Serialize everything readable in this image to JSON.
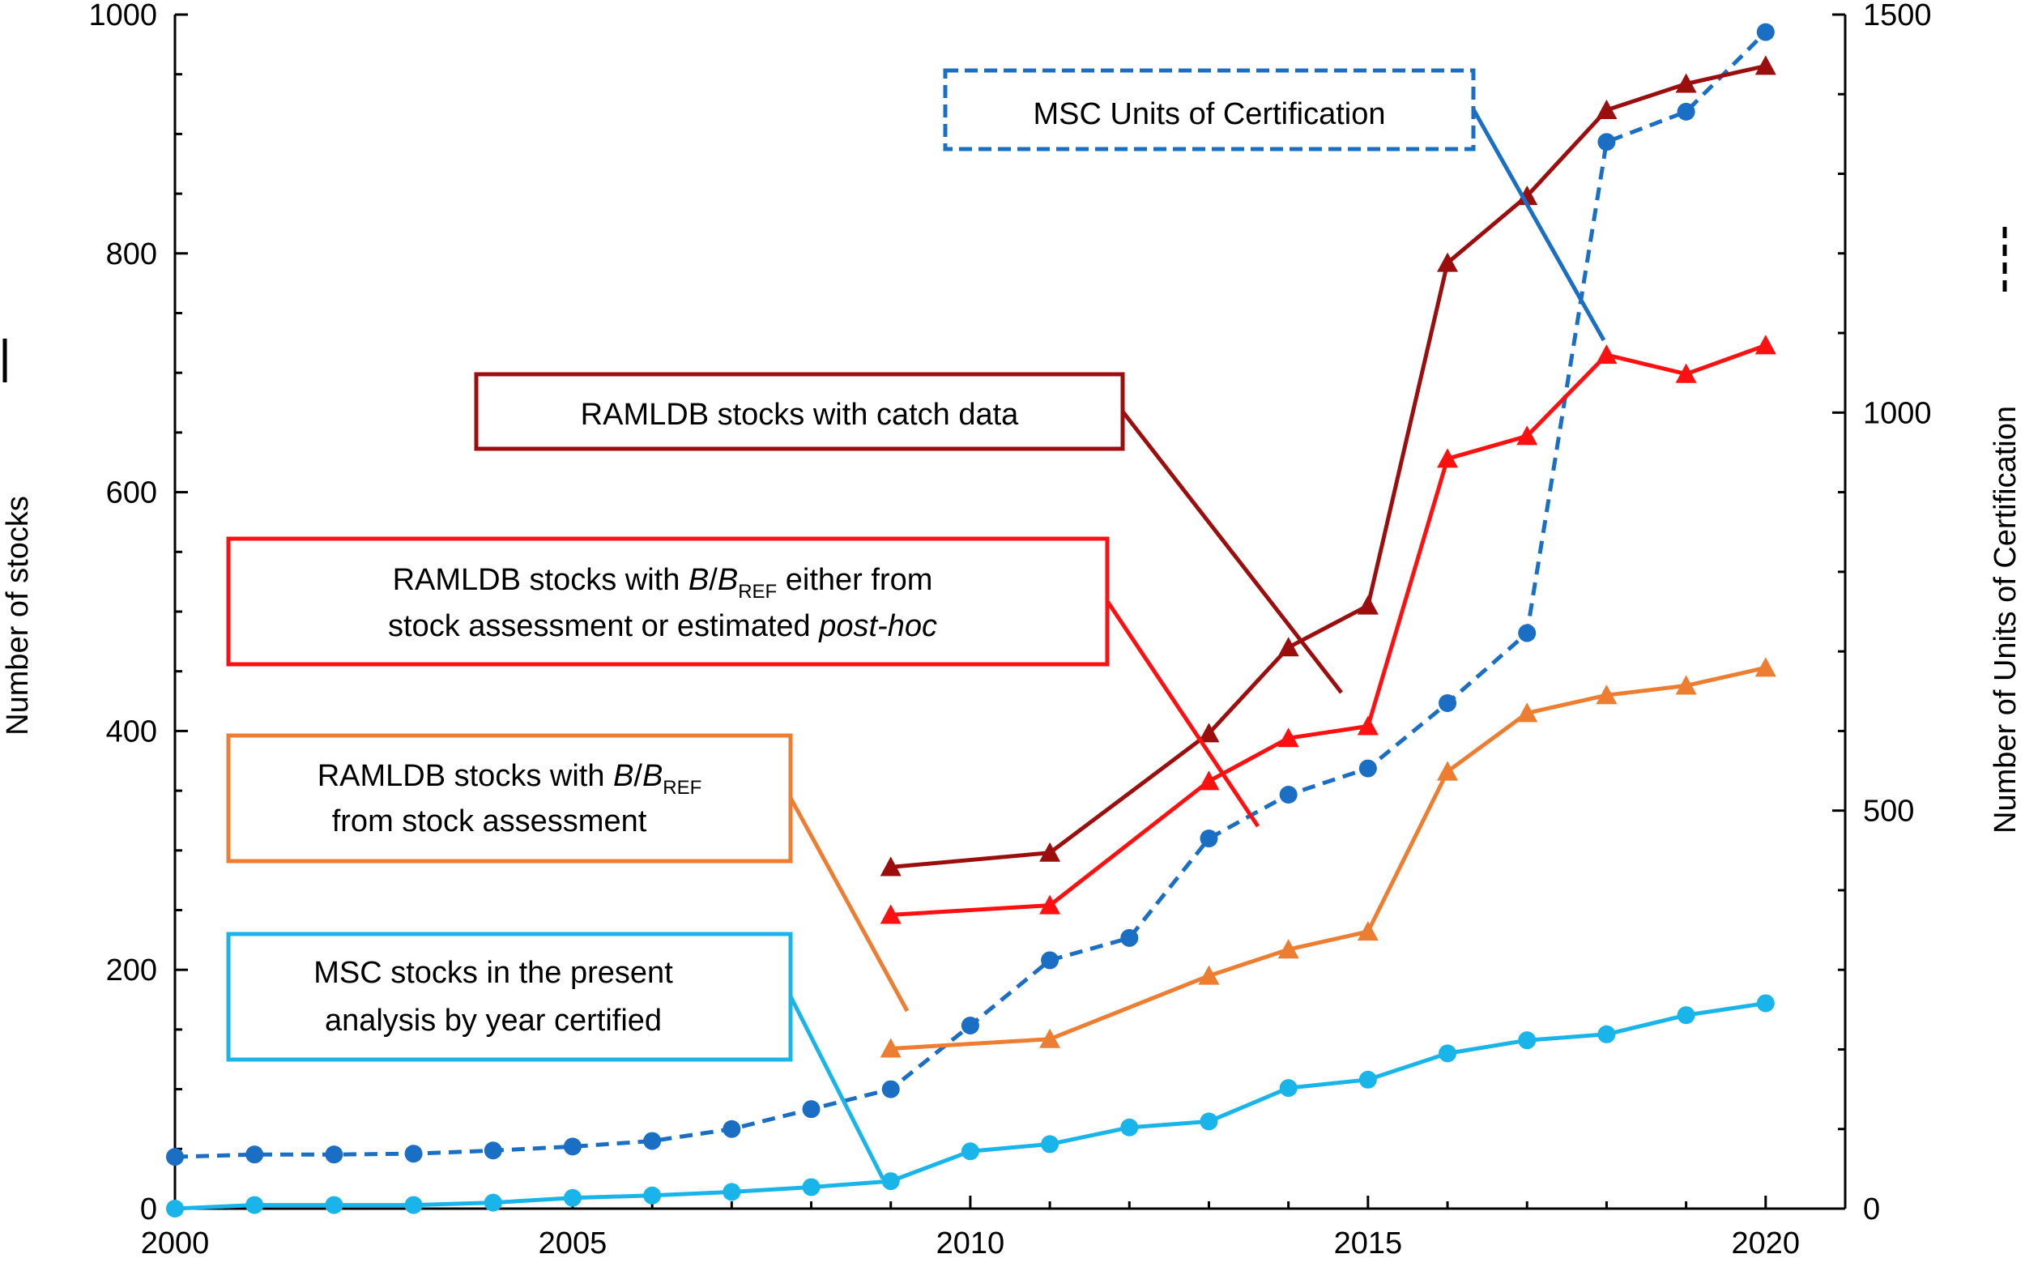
{
  "chart_data": {
    "type": "line",
    "x_ticks": [
      2000,
      2005,
      2010,
      2015,
      2020
    ],
    "x_range": [
      2000,
      2021
    ],
    "y_left": {
      "label": "Number of stocks",
      "range": [
        0,
        1000
      ],
      "ticks": [
        0,
        200,
        400,
        600,
        800,
        1000
      ]
    },
    "y_right": {
      "label": "Number of Units of Certification",
      "range": [
        0,
        1500
      ],
      "ticks": [
        0,
        500,
        1000,
        1500
      ]
    },
    "series": [
      {
        "key": "msc_units",
        "name": "MSC Units of Certification",
        "axis": "right",
        "color": "#1a6fc4",
        "style": "dashed",
        "marker": "circle",
        "points": [
          [
            2000,
            65
          ],
          [
            2001,
            68
          ],
          [
            2002,
            68
          ],
          [
            2003,
            69
          ],
          [
            2004,
            73
          ],
          [
            2005,
            78
          ],
          [
            2006,
            85
          ],
          [
            2007,
            100
          ],
          [
            2008,
            125
          ],
          [
            2009,
            150
          ],
          [
            2010,
            230
          ],
          [
            2011,
            312
          ],
          [
            2012,
            340
          ],
          [
            2013,
            465
          ],
          [
            2014,
            520
          ],
          [
            2015,
            553
          ],
          [
            2016,
            635
          ],
          [
            2017,
            723
          ],
          [
            2018,
            1340
          ],
          [
            2019,
            1378
          ],
          [
            2020,
            1478
          ]
        ]
      },
      {
        "key": "ramldb_catch",
        "name": "RAMLDB stocks with catch data",
        "axis": "left",
        "color": "#9c0e0e",
        "style": "solid",
        "marker": "triangle",
        "points": [
          [
            2009,
            286
          ],
          [
            2011,
            298
          ],
          [
            2013,
            398
          ],
          [
            2014,
            470
          ],
          [
            2015,
            505
          ],
          [
            2016,
            792
          ],
          [
            2017,
            848
          ],
          [
            2018,
            920
          ],
          [
            2019,
            942
          ],
          [
            2020,
            957
          ]
        ]
      },
      {
        "key": "ramldb_bref_all",
        "name": "RAMLDB stocks with B/BREF either from stock assessment or estimated post-hoc",
        "axis": "left",
        "color": "#ff1010",
        "style": "solid",
        "marker": "triangle",
        "points": [
          [
            2009,
            246
          ],
          [
            2011,
            254
          ],
          [
            2013,
            358
          ],
          [
            2014,
            394
          ],
          [
            2015,
            404
          ],
          [
            2016,
            628
          ],
          [
            2017,
            647
          ],
          [
            2018,
            715
          ],
          [
            2019,
            699
          ],
          [
            2020,
            723
          ]
        ]
      },
      {
        "key": "ramldb_bref_assess",
        "name": "RAMLDB stocks with B/BREF from stock assessment",
        "axis": "left",
        "color": "#ed7d31",
        "style": "solid",
        "marker": "triangle",
        "points": [
          [
            2009,
            134
          ],
          [
            2011,
            142
          ],
          [
            2013,
            195
          ],
          [
            2014,
            217
          ],
          [
            2015,
            232
          ],
          [
            2016,
            366
          ],
          [
            2017,
            415
          ],
          [
            2018,
            430
          ],
          [
            2019,
            438
          ],
          [
            2020,
            453
          ]
        ]
      },
      {
        "key": "msc_stocks",
        "name": "MSC stocks in the present analysis by year certified",
        "axis": "left",
        "color": "#19b5ea",
        "style": "solid",
        "marker": "circle",
        "points": [
          [
            2000,
            0
          ],
          [
            2001,
            3
          ],
          [
            2002,
            3
          ],
          [
            2003,
            3
          ],
          [
            2004,
            5
          ],
          [
            2005,
            9
          ],
          [
            2006,
            11
          ],
          [
            2007,
            14
          ],
          [
            2008,
            18
          ],
          [
            2009,
            23
          ],
          [
            2010,
            48
          ],
          [
            2011,
            54
          ],
          [
            2012,
            68
          ],
          [
            2013,
            73
          ],
          [
            2014,
            101
          ],
          [
            2015,
            108
          ],
          [
            2016,
            130
          ],
          [
            2017,
            141
          ],
          [
            2018,
            146
          ],
          [
            2019,
            162
          ],
          [
            2020,
            172
          ]
        ]
      }
    ],
    "annotations": [
      {
        "key": "msc_units",
        "lines": [
          "MSC Units of Certification"
        ]
      },
      {
        "key": "ramldb_catch",
        "lines": [
          "RAMLDB stocks with catch data"
        ]
      },
      {
        "key": "ramldb_bref_all",
        "line1_prefix": "RAMLDB stocks with ",
        "b": "B",
        "slash": "/",
        "b2": "B",
        "sub": "REF",
        "line1_suffix": " either from",
        "line2_prefix": "stock assessment or estimated ",
        "line2_italic": "post-hoc"
      },
      {
        "key": "ramldb_bref_assess",
        "line1_prefix": "RAMLDB stocks with ",
        "b": "B",
        "slash": "/",
        "b2": "B",
        "sub": "REF",
        "line2": "from stock assessment"
      },
      {
        "key": "msc_stocks",
        "lines": [
          "MSC stocks in the present",
          "analysis by year certified"
        ]
      }
    ]
  }
}
